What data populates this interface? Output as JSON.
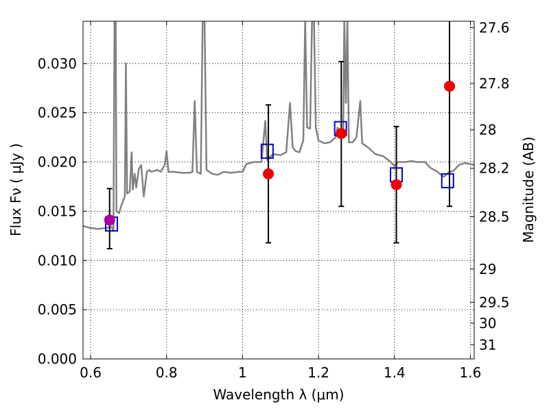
{
  "chart_data": {
    "type": "scatter",
    "xlabel": "Wavelength  λ (μm)",
    "ylabel": "Flux  Fν  ( μJy )",
    "y2label": "Magnitude (AB)",
    "xlim": [
      0.58,
      1.61
    ],
    "ylim": [
      0.0,
      0.0343
    ],
    "grid": true,
    "x_ticks": [
      0.6,
      0.8,
      1.0,
      1.2,
      1.4,
      1.6
    ],
    "x_tick_labels": [
      "0.6",
      "0.8",
      "1",
      "1.2",
      "1.4",
      "1.6"
    ],
    "y_ticks": [
      0.0,
      0.005,
      0.01,
      0.015,
      0.02,
      0.025,
      0.03
    ],
    "y_tick_labels": [
      "0.000",
      "0.005",
      "0.010",
      "0.015",
      "0.020",
      "0.025",
      "0.030"
    ],
    "mag_ticks": [
      {
        "flux": 0.03364,
        "label": "27.6"
      },
      {
        "flux": 0.02798,
        "label": "27.8"
      },
      {
        "flux": 0.02327,
        "label": "28"
      },
      {
        "flux": 0.01936,
        "label": "28.2"
      },
      {
        "flux": 0.01445,
        "label": "28.5"
      },
      {
        "flux": 0.00912,
        "label": "29"
      },
      {
        "flux": 0.00575,
        "label": "29.5"
      },
      {
        "flux": 0.00363,
        "label": "30"
      },
      {
        "flux": 0.00144,
        "label": "31"
      }
    ],
    "colors": {
      "spectrum": "#808080",
      "model_box": "#0000cc",
      "observed": "#ee0000",
      "observed_first": "#aa00aa",
      "errorbar": "#000000"
    },
    "series": [
      {
        "kind": "spectrum",
        "points": [
          [
            0.58,
            0.0135
          ],
          [
            0.6,
            0.0133
          ],
          [
            0.62,
            0.0132
          ],
          [
            0.64,
            0.0133
          ],
          [
            0.655,
            0.0134
          ],
          [
            0.66,
            0.013
          ],
          [
            0.663,
            0.0345
          ],
          [
            0.666,
            0.0345
          ],
          [
            0.668,
            0.015
          ],
          [
            0.675,
            0.0148
          ],
          [
            0.68,
            0.0155
          ],
          [
            0.685,
            0.016
          ],
          [
            0.69,
            0.0165
          ],
          [
            0.693,
            0.03
          ],
          [
            0.696,
            0.0168
          ],
          [
            0.703,
            0.017
          ],
          [
            0.708,
            0.021
          ],
          [
            0.711,
            0.0172
          ],
          [
            0.716,
            0.0188
          ],
          [
            0.72,
            0.0174
          ],
          [
            0.727,
            0.0193
          ],
          [
            0.733,
            0.0197
          ],
          [
            0.74,
            0.0165
          ],
          [
            0.748,
            0.019
          ],
          [
            0.755,
            0.0192
          ],
          [
            0.76,
            0.019
          ],
          [
            0.775,
            0.0192
          ],
          [
            0.785,
            0.019
          ],
          [
            0.795,
            0.0197
          ],
          [
            0.8,
            0.0211
          ],
          [
            0.805,
            0.019
          ],
          [
            0.82,
            0.019
          ],
          [
            0.84,
            0.0189
          ],
          [
            0.86,
            0.0189
          ],
          [
            0.868,
            0.019
          ],
          [
            0.874,
            0.0262
          ],
          [
            0.88,
            0.019
          ],
          [
            0.89,
            0.0188
          ],
          [
            0.895,
            0.0345
          ],
          [
            0.9,
            0.0345
          ],
          [
            0.905,
            0.0192
          ],
          [
            0.92,
            0.0188
          ],
          [
            0.935,
            0.0187
          ],
          [
            0.95,
            0.019
          ],
          [
            0.97,
            0.0189
          ],
          [
            0.99,
            0.019
          ],
          [
            1.0,
            0.019
          ],
          [
            1.01,
            0.0198
          ],
          [
            1.03,
            0.02
          ],
          [
            1.05,
            0.02
          ],
          [
            1.06,
            0.0242
          ],
          [
            1.065,
            0.0202
          ],
          [
            1.08,
            0.0208
          ],
          [
            1.1,
            0.0207
          ],
          [
            1.115,
            0.021
          ],
          [
            1.125,
            0.026
          ],
          [
            1.132,
            0.0215
          ],
          [
            1.14,
            0.0211
          ],
          [
            1.15,
            0.021
          ],
          [
            1.16,
            0.0222
          ],
          [
            1.165,
            0.0345
          ],
          [
            1.17,
            0.0235
          ],
          [
            1.178,
            0.0234
          ],
          [
            1.183,
            0.0345
          ],
          [
            1.188,
            0.0345
          ],
          [
            1.193,
            0.0235
          ],
          [
            1.2,
            0.0222
          ],
          [
            1.215,
            0.0219
          ],
          [
            1.23,
            0.022
          ],
          [
            1.245,
            0.0225
          ],
          [
            1.25,
            0.0235
          ],
          [
            1.255,
            0.0227
          ],
          [
            1.26,
            0.023
          ],
          [
            1.265,
            0.0228
          ],
          [
            1.268,
            0.0345
          ],
          [
            1.272,
            0.026
          ],
          [
            1.276,
            0.0345
          ],
          [
            1.28,
            0.022
          ],
          [
            1.29,
            0.022
          ],
          [
            1.3,
            0.0225
          ],
          [
            1.31,
            0.0262
          ],
          [
            1.315,
            0.0219
          ],
          [
            1.33,
            0.0215
          ],
          [
            1.35,
            0.0208
          ],
          [
            1.37,
            0.0206
          ],
          [
            1.39,
            0.02
          ],
          [
            1.4,
            0.0196
          ],
          [
            1.41,
            0.02
          ],
          [
            1.43,
            0.02
          ],
          [
            1.445,
            0.0201
          ],
          [
            1.46,
            0.02
          ],
          [
            1.48,
            0.02
          ],
          [
            1.495,
            0.0194
          ],
          [
            1.51,
            0.0191
          ],
          [
            1.53,
            0.0185
          ],
          [
            1.545,
            0.019
          ],
          [
            1.555,
            0.0191
          ],
          [
            1.57,
            0.0197
          ],
          [
            1.585,
            0.0199
          ],
          [
            1.61,
            0.0197
          ]
        ]
      },
      {
        "kind": "model_boxes",
        "name": "",
        "x": [
          0.655,
          1.065,
          1.258,
          1.405,
          1.54
        ],
        "y": [
          0.0137,
          0.0211,
          0.0234,
          0.0187,
          0.0181
        ]
      },
      {
        "kind": "observed",
        "name": "",
        "x": [
          0.65,
          1.068,
          1.26,
          1.405,
          1.545
        ],
        "y": [
          0.0141,
          0.0188,
          0.0229,
          0.0177,
          0.0277
        ],
        "err_low": [
          0.0112,
          0.0118,
          0.0155,
          0.0118,
          0.0155
        ],
        "err_high": [
          0.0173,
          0.0258,
          0.0302,
          0.0236,
          0.0345
        ]
      }
    ]
  }
}
